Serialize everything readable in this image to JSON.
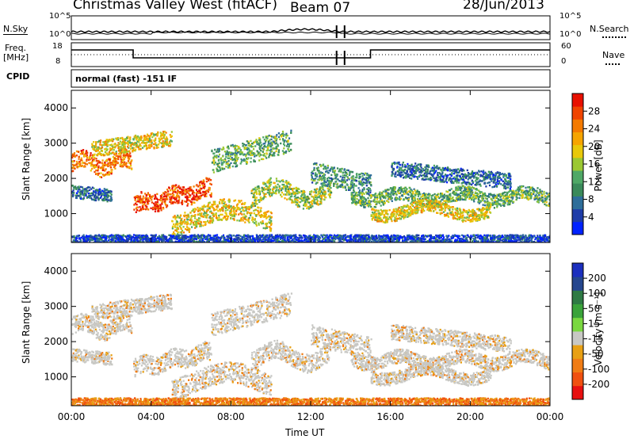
{
  "header": {
    "station": "Christmas Valley West (fitACF)",
    "beam": "Beam 07",
    "date": "28/Jun/2013"
  },
  "status": {
    "nsky_label": "N.Sky",
    "nsky_tick_hi": "10^5",
    "nsky_tick_lo": "10^0",
    "nsearch_label": "N.Search",
    "nsearch_tick_hi": "10^5",
    "nsearch_tick_lo": "10^0",
    "freq_label_1": "Freq.",
    "freq_label_2": "[MHz]",
    "freq_tick_hi": "18",
    "freq_tick_lo": "8",
    "nave_label": "Nave",
    "nave_tick_hi": "60",
    "nave_tick_lo": "0",
    "cpid_label": "CPID",
    "cpid_text": "normal (fast) -151 IF"
  },
  "colors": {
    "power_scale": [
      "#0022ff",
      "#1e3ca8",
      "#2e6e9a",
      "#3a8a5a",
      "#4fa866",
      "#9bc832",
      "#e8c80a",
      "#f6a400",
      "#f47a00",
      "#f04400",
      "#e81000"
    ],
    "velocity_scale": [
      "#1b2fbe",
      "#25468e",
      "#2e7a44",
      "#3aa33a",
      "#7ad840",
      "#c8c8c4",
      "#e8a014",
      "#f07c14",
      "#f05010",
      "#e81010"
    ]
  },
  "chart_data": [
    {
      "type": "heatmap",
      "name": "power",
      "xlabel": "",
      "ylabel": "Slant Range [km]",
      "x_ticks": [
        "00:00",
        "04:00",
        "08:00",
        "12:00",
        "16:00",
        "20:00",
        "00:00"
      ],
      "y_ticks": [
        1000,
        2000,
        3000,
        4000
      ],
      "ylim": [
        180,
        4500
      ],
      "colorbar": {
        "label": "Power [dB]",
        "ticks": [
          "4",
          "8",
          "12",
          "16",
          "20",
          "24",
          "28"
        ],
        "range": [
          0,
          30
        ]
      }
    },
    {
      "type": "heatmap",
      "name": "velocity",
      "xlabel": "Time UT",
      "ylabel": "Slant Range [km]",
      "x_ticks": [
        "00:00",
        "04:00",
        "08:00",
        "12:00",
        "16:00",
        "20:00",
        "00:00"
      ],
      "y_ticks": [
        1000,
        2000,
        3000,
        4000
      ],
      "ylim": [
        180,
        4500
      ],
      "colorbar": {
        "label": "Velocity [m s⁻¹]",
        "ticks": [
          "200",
          "100",
          "50",
          "15",
          "-15",
          "-50",
          "-100",
          "-200"
        ],
        "range": [
          -250,
          250
        ]
      }
    }
  ]
}
